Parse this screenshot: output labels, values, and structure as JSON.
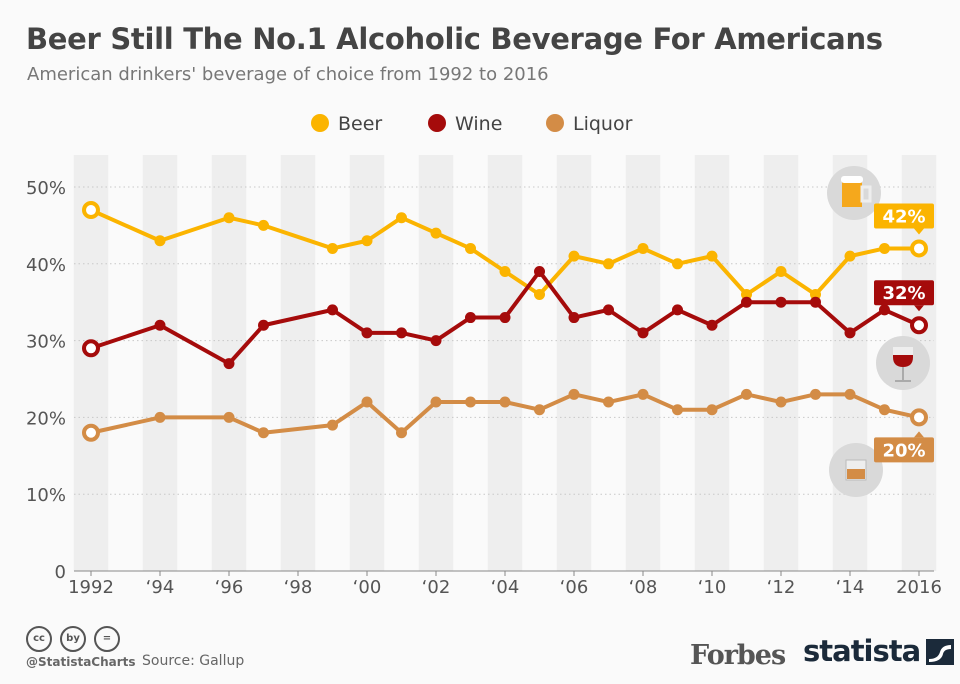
{
  "chart_data": {
    "type": "line",
    "title": "Beer Still The No.1 Alcoholic Beverage For Americans",
    "subtitle": "American drinkers' beverage of choice from 1992 to 2016",
    "x": [
      1992,
      1994,
      1996,
      1997,
      1999,
      2000,
      2001,
      2002,
      2003,
      2004,
      2005,
      2006,
      2007,
      2008,
      2009,
      2010,
      2011,
      2012,
      2013,
      2014,
      2015,
      2016
    ],
    "xticks": [
      1992,
      1994,
      1996,
      1998,
      2000,
      2002,
      2004,
      2006,
      2008,
      2010,
      2012,
      2014,
      2016
    ],
    "xtick_labels": [
      "1992",
      "‘94",
      "‘96",
      "‘98",
      "‘00",
      "‘02",
      "‘04",
      "‘06",
      "‘08",
      "‘10",
      "‘12",
      "‘14",
      "2016"
    ],
    "yticks": [
      0,
      10,
      20,
      30,
      40,
      50
    ],
    "ytick_labels": [
      "0",
      "10%",
      "20%",
      "30%",
      "40%",
      "50%"
    ],
    "ylim": [
      0,
      55
    ],
    "xlim": [
      1991.5,
      2016.5
    ],
    "grid": "horizontal dotted, alternating vertical year bands",
    "legend_placement": "top-center",
    "series": [
      {
        "name": "Beer",
        "color": "#fbb400",
        "values": [
          47,
          43,
          46,
          45,
          42,
          43,
          46,
          44,
          42,
          39,
          36,
          41,
          40,
          42,
          40,
          41,
          36,
          39,
          36,
          41,
          42,
          42
        ],
        "end_label": "42%",
        "icon": "beer-mug-icon"
      },
      {
        "name": "Wine",
        "color": "#a50b0b",
        "values": [
          29,
          32,
          27,
          32,
          34,
          31,
          31,
          30,
          33,
          33,
          39,
          33,
          34,
          31,
          34,
          32,
          35,
          35,
          35,
          31,
          34,
          32
        ],
        "end_label": "32%",
        "icon": "wine-glass-icon"
      },
      {
        "name": "Liquor",
        "color": "#d38c46",
        "values": [
          18,
          20,
          20,
          18,
          19,
          22,
          18,
          22,
          22,
          22,
          21,
          23,
          22,
          23,
          21,
          21,
          23,
          22,
          23,
          23,
          21,
          20
        ],
        "end_label": "20%",
        "icon": "whiskey-glass-icon"
      }
    ]
  },
  "footer": {
    "handle": "@StatistaCharts",
    "source": "Source: Gallup",
    "license_icons": [
      "cc",
      "by",
      "="
    ],
    "logos": [
      "Forbes",
      "statista"
    ]
  }
}
